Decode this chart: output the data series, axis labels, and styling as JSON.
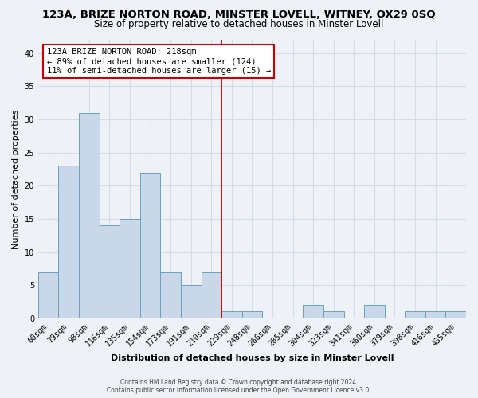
{
  "title": "123A, BRIZE NORTON ROAD, MINSTER LOVELL, WITNEY, OX29 0SQ",
  "subtitle": "Size of property relative to detached houses in Minster Lovell",
  "xlabel": "Distribution of detached houses by size in Minster Lovell",
  "ylabel": "Number of detached properties",
  "footer_lines": [
    "Contains HM Land Registry data © Crown copyright and database right 2024.",
    "Contains public sector information licensed under the Open Government Licence v3.0."
  ],
  "bin_labels": [
    "60sqm",
    "79sqm",
    "98sqm",
    "116sqm",
    "135sqm",
    "154sqm",
    "173sqm",
    "191sqm",
    "210sqm",
    "229sqm",
    "248sqm",
    "266sqm",
    "285sqm",
    "304sqm",
    "323sqm",
    "341sqm",
    "360sqm",
    "379sqm",
    "398sqm",
    "416sqm",
    "435sqm"
  ],
  "bar_values": [
    7,
    23,
    31,
    14,
    15,
    22,
    7,
    5,
    7,
    1,
    1,
    0,
    0,
    2,
    1,
    0,
    2,
    0,
    1,
    1,
    1
  ],
  "bar_color": "#c8d8e8",
  "bar_edge_color": "#6aa0c0",
  "vline_x": 8.5,
  "vline_color": "#cc0000",
  "annotation_text": "123A BRIZE NORTON ROAD: 218sqm\n← 89% of detached houses are smaller (124)\n11% of semi-detached houses are larger (15) →",
  "annotation_box_color": "#ffffff",
  "annotation_box_edge": "#cc0000",
  "ylim": [
    0,
    42
  ],
  "yticks": [
    0,
    5,
    10,
    15,
    20,
    25,
    30,
    35,
    40
  ],
  "grid_color": "#d4dde6",
  "background_color": "#eef2f7",
  "title_fontsize": 9.5,
  "subtitle_fontsize": 8.5,
  "axis_fontsize": 8,
  "tick_fontsize": 7,
  "annotation_fontsize": 7.5,
  "footer_fontsize": 5.5
}
